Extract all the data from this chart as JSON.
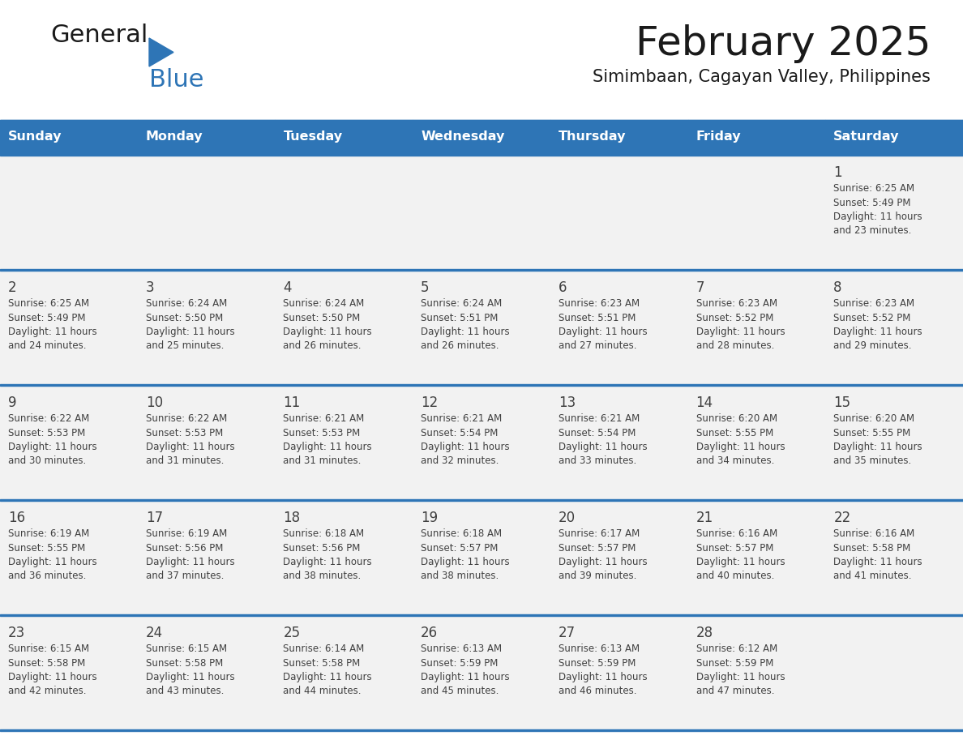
{
  "title": "February 2025",
  "subtitle": "Simimbaan, Cagayan Valley, Philippines",
  "days_of_week": [
    "Sunday",
    "Monday",
    "Tuesday",
    "Wednesday",
    "Thursday",
    "Friday",
    "Saturday"
  ],
  "header_bg": "#2E75B6",
  "header_text": "#FFFFFF",
  "row_bg": "#F2F2F2",
  "cell_border_color": "#2E75B6",
  "day_number_color": "#404040",
  "info_text_color": "#404040",
  "title_color": "#1a1a1a",
  "subtitle_color": "#1a1a1a",
  "logo_general_color": "#1a1a1a",
  "logo_blue_color": "#2E75B6",
  "calendar_data": [
    [
      null,
      null,
      null,
      null,
      null,
      null,
      1
    ],
    [
      2,
      3,
      4,
      5,
      6,
      7,
      8
    ],
    [
      9,
      10,
      11,
      12,
      13,
      14,
      15
    ],
    [
      16,
      17,
      18,
      19,
      20,
      21,
      22
    ],
    [
      23,
      24,
      25,
      26,
      27,
      28,
      null
    ]
  ],
  "sunrise_data": {
    "1": "6:25 AM",
    "2": "6:25 AM",
    "3": "6:24 AM",
    "4": "6:24 AM",
    "5": "6:24 AM",
    "6": "6:23 AM",
    "7": "6:23 AM",
    "8": "6:23 AM",
    "9": "6:22 AM",
    "10": "6:22 AM",
    "11": "6:21 AM",
    "12": "6:21 AM",
    "13": "6:21 AM",
    "14": "6:20 AM",
    "15": "6:20 AM",
    "16": "6:19 AM",
    "17": "6:19 AM",
    "18": "6:18 AM",
    "19": "6:18 AM",
    "20": "6:17 AM",
    "21": "6:16 AM",
    "22": "6:16 AM",
    "23": "6:15 AM",
    "24": "6:15 AM",
    "25": "6:14 AM",
    "26": "6:13 AM",
    "27": "6:13 AM",
    "28": "6:12 AM"
  },
  "sunset_data": {
    "1": "5:49 PM",
    "2": "5:49 PM",
    "3": "5:50 PM",
    "4": "5:50 PM",
    "5": "5:51 PM",
    "6": "5:51 PM",
    "7": "5:52 PM",
    "8": "5:52 PM",
    "9": "5:53 PM",
    "10": "5:53 PM",
    "11": "5:53 PM",
    "12": "5:54 PM",
    "13": "5:54 PM",
    "14": "5:55 PM",
    "15": "5:55 PM",
    "16": "5:55 PM",
    "17": "5:56 PM",
    "18": "5:56 PM",
    "19": "5:57 PM",
    "20": "5:57 PM",
    "21": "5:57 PM",
    "22": "5:58 PM",
    "23": "5:58 PM",
    "24": "5:58 PM",
    "25": "5:58 PM",
    "26": "5:59 PM",
    "27": "5:59 PM",
    "28": "5:59 PM"
  },
  "daylight_hours": {
    "1": "11",
    "2": "11",
    "3": "11",
    "4": "11",
    "5": "11",
    "6": "11",
    "7": "11",
    "8": "11",
    "9": "11",
    "10": "11",
    "11": "11",
    "12": "11",
    "13": "11",
    "14": "11",
    "15": "11",
    "16": "11",
    "17": "11",
    "18": "11",
    "19": "11",
    "20": "11",
    "21": "11",
    "22": "11",
    "23": "11",
    "24": "11",
    "25": "11",
    "26": "11",
    "27": "11",
    "28": "11"
  },
  "daylight_minutes": {
    "1": "23",
    "2": "24",
    "3": "25",
    "4": "26",
    "5": "26",
    "6": "27",
    "7": "28",
    "8": "29",
    "9": "30",
    "10": "31",
    "11": "31",
    "12": "32",
    "13": "33",
    "14": "34",
    "15": "35",
    "16": "36",
    "17": "37",
    "18": "38",
    "19": "38",
    "20": "39",
    "21": "40",
    "22": "41",
    "23": "42",
    "24": "43",
    "25": "44",
    "26": "45",
    "27": "46",
    "28": "47"
  }
}
